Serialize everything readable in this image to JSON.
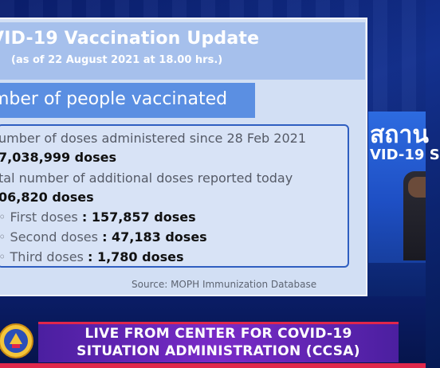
{
  "slide": {
    "title": "VID-19 Vaccination Update",
    "subtitle": "(as of 22 August 2021 at 18.00 hrs.)",
    "section_title": "mber of people vaccinated",
    "lines": {
      "doses_since_label": "umber of doses administered since 28 Feb 2021",
      "doses_since_value": "7,038,999 doses",
      "additional_label": "tal number of additional doses reported today",
      "additional_value": "06,820 doses"
    },
    "bullets": [
      {
        "label": "First doses",
        "value": ": 157,857 doses"
      },
      {
        "label": "Second doses",
        "value": ": 47,183 doses"
      },
      {
        "label": "Third doses",
        "value": ": 1,780 doses"
      }
    ],
    "source": "Source: MOPH Immunization Database"
  },
  "studio": {
    "title": "สถาน",
    "subtitle": "VID-19 S"
  },
  "banner": {
    "line1": "LIVE FROM CENTER FOR COVID-19",
    "line2": "SITUATION ADMINISTRATION (CCSA)"
  },
  "colors": {
    "accent": "#e0274b",
    "banner": "#7a2bc7",
    "slide_bg": "#d2dff4",
    "section_bg": "#5b8fe2"
  }
}
